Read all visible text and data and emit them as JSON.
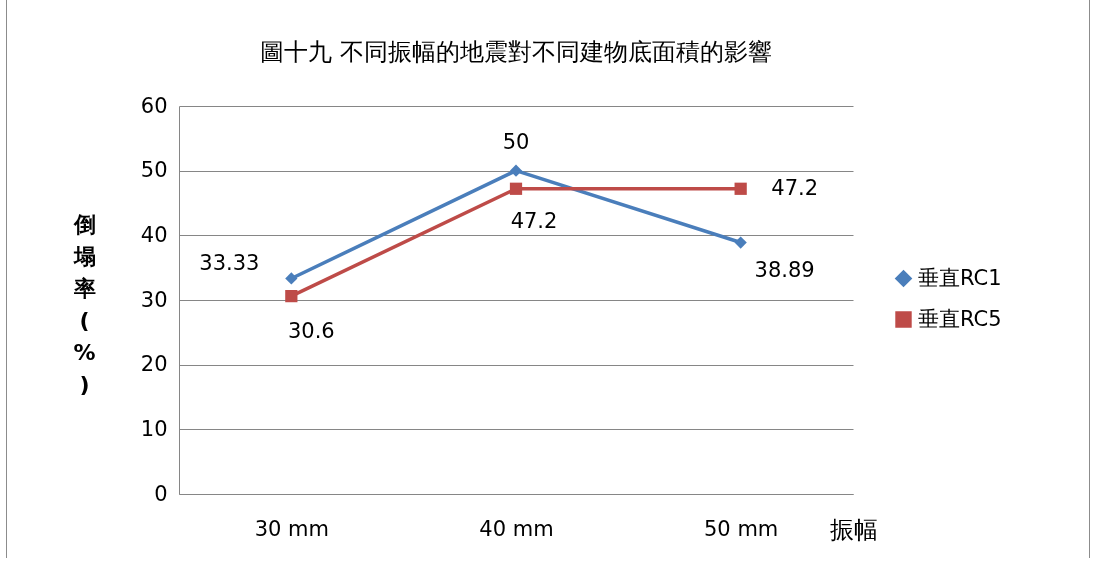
{
  "chart_data": {
    "type": "line",
    "title": "圖十九 不同振幅的地震對不同建物底面積的影響",
    "xlabel": "振幅",
    "ylabel": "倒塌率(%)",
    "categories": [
      "30  mm",
      "40  mm",
      "50  mm"
    ],
    "series": [
      {
        "name": "垂直RC1",
        "color": "#4a7ebb",
        "marker": "diamond",
        "values": [
          33.33,
          50,
          38.89
        ]
      },
      {
        "name": "垂直RC5",
        "color": "#be4b48",
        "marker": "square",
        "values": [
          30.6,
          47.2,
          47.2
        ]
      }
    ],
    "ylim": [
      0,
      60
    ],
    "yticks": [
      0,
      10,
      20,
      30,
      40,
      50,
      60
    ],
    "grid": "y",
    "legend": "right",
    "data_labels": true
  }
}
